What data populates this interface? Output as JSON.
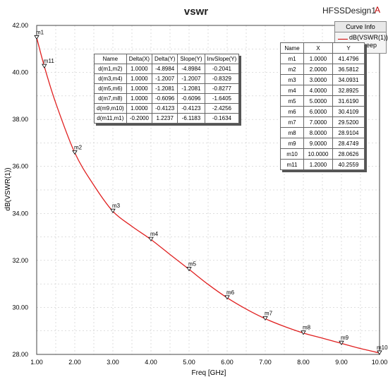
{
  "title": "vswr",
  "design_name": "HFSSDesign1",
  "design_mark": "A",
  "legend": {
    "header": "Curve Info",
    "curve_name": "dB(VSWR(1))",
    "sweep": "p1 : Sweep"
  },
  "colors": {
    "curve": "#e02020",
    "grid": "#bdbdbd",
    "background": "#ffffff"
  },
  "chart_data": {
    "type": "line",
    "xlabel": "Freq [GHz]",
    "ylabel": "dB(VSWR(1))",
    "xlim": [
      1.0,
      10.0
    ],
    "ylim": [
      28.0,
      42.0
    ],
    "xticks": [
      1,
      2,
      3,
      4,
      5,
      6,
      7,
      8,
      9,
      10
    ],
    "yticks": [
      28,
      30,
      32,
      34,
      36,
      38,
      40,
      42
    ],
    "xtick_labels": [
      "1.00",
      "2.00",
      "3.00",
      "4.00",
      "5.00",
      "6.00",
      "7.00",
      "8.00",
      "9.00",
      "10.00"
    ],
    "ytick_labels": [
      "28.00",
      "30.00",
      "32.00",
      "34.00",
      "36.00",
      "38.00",
      "40.00",
      "42.00"
    ],
    "grid": true,
    "series": [
      {
        "name": "dB(VSWR(1))",
        "x": [
          1.0,
          1.2,
          1.5,
          2.0,
          2.5,
          3.0,
          3.5,
          4.0,
          4.5,
          5.0,
          5.5,
          6.0,
          6.5,
          7.0,
          7.5,
          8.0,
          8.5,
          9.0,
          9.5,
          10.0
        ],
        "y": [
          41.48,
          40.26,
          38.7,
          36.58,
          35.2,
          34.09,
          33.45,
          32.89,
          32.25,
          31.62,
          30.98,
          30.41,
          29.93,
          29.52,
          29.19,
          28.91,
          28.69,
          28.47,
          28.25,
          28.06
        ]
      }
    ],
    "markers": [
      {
        "name": "m1",
        "x": 1.0,
        "y": 41.4796
      },
      {
        "name": "m2",
        "x": 2.0,
        "y": 36.5812
      },
      {
        "name": "m3",
        "x": 3.0,
        "y": 34.0931
      },
      {
        "name": "m4",
        "x": 4.0,
        "y": 32.8925
      },
      {
        "name": "m5",
        "x": 5.0,
        "y": 31.619
      },
      {
        "name": "m6",
        "x": 6.0,
        "y": 30.4109
      },
      {
        "name": "m7",
        "x": 7.0,
        "y": 29.52
      },
      {
        "name": "m8",
        "x": 8.0,
        "y": 28.9104
      },
      {
        "name": "m9",
        "x": 9.0,
        "y": 28.4749
      },
      {
        "name": "m10",
        "x": 10.0,
        "y": 28.0626
      },
      {
        "name": "m11",
        "x": 1.2,
        "y": 40.2559
      }
    ]
  },
  "marker_table": {
    "headers": [
      "Name",
      "X",
      "Y"
    ],
    "rows": [
      [
        "m1",
        "1.0000",
        "41.4796"
      ],
      [
        "m2",
        "2.0000",
        "36.5812"
      ],
      [
        "m3",
        "3.0000",
        "34.0931"
      ],
      [
        "m4",
        "4.0000",
        "32.8925"
      ],
      [
        "m5",
        "5.0000",
        "31.6190"
      ],
      [
        "m6",
        "6.0000",
        "30.4109"
      ],
      [
        "m7",
        "7.0000",
        "29.5200"
      ],
      [
        "m8",
        "8.0000",
        "28.9104"
      ],
      [
        "m9",
        "9.0000",
        "28.4749"
      ],
      [
        "m10",
        "10.0000",
        "28.0626"
      ],
      [
        "m11",
        "1.2000",
        "40.2559"
      ]
    ]
  },
  "delta_table": {
    "headers": [
      "Name",
      "Delta(X)",
      "Delta(Y)",
      "Slope(Y)",
      "InvSlope(Y)"
    ],
    "rows": [
      [
        "d(m1,m2)",
        "1.0000",
        "-4.8984",
        "-4.8984",
        "-0.2041"
      ],
      [
        "d(m3,m4)",
        "1.0000",
        "-1.2007",
        "-1.2007",
        "-0.8329"
      ],
      [
        "d(m5,m6)",
        "1.0000",
        "-1.2081",
        "-1.2081",
        "-0.8277"
      ],
      [
        "d(m7,m8)",
        "1.0000",
        "-0.6096",
        "-0.6096",
        "-1.6405"
      ],
      [
        "d(m9,m10)",
        "1.0000",
        "-0.4123",
        "-0.4123",
        "-2.4256"
      ],
      [
        "d(m11,m1)",
        "-0.2000",
        "1.2237",
        "-6.1183",
        "-0.1634"
      ]
    ]
  }
}
